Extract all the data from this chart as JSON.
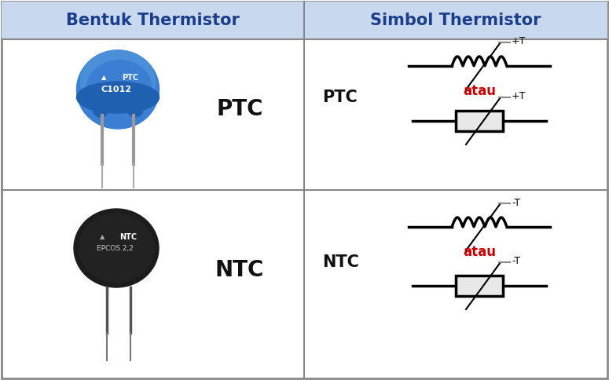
{
  "title_left": "Bentuk Thermistor",
  "title_right": "Simbol Thermistor",
  "title_color": "#1a3e8c",
  "title_fontsize": 15,
  "bg_color": "#ffffff",
  "border_color": "#888888",
  "header_bg": "#c8d8ee",
  "label_ptc": "PTC",
  "label_ntc": "NTC",
  "label_atau": "atau",
  "atau_color": "#cc0000",
  "symbol_color": "#000000",
  "label_plus_t": "+T",
  "label_minus_t": "-T",
  "ptc_blue_main": "#3a7fd4",
  "ptc_blue_dark": "#2060b0",
  "ptc_blue_mid": "#4a90d9",
  "ntc_dark": "#1e1e1e",
  "ntc_darker": "#111111",
  "figsize": [
    7.75,
    4.84
  ],
  "dpi": 100
}
